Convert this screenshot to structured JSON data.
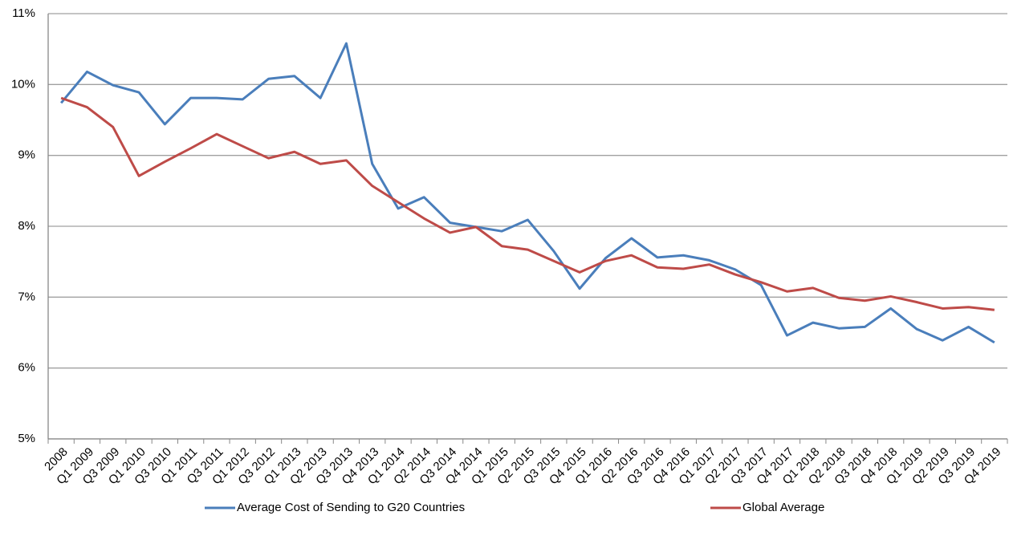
{
  "chart_data": {
    "type": "line",
    "categories": [
      "2008",
      "Q1 2009",
      "Q3 2009",
      "Q1 2010",
      "Q3 2010",
      "Q1 2011",
      "Q3 2011",
      "Q1 2012",
      "Q3 2012",
      "Q1 2013",
      "Q2 2013",
      "Q3 2013",
      "Q4 2013",
      "Q1 2014",
      "Q2 2014",
      "Q3 2014",
      "Q4 2014",
      "Q1 2015",
      "Q2 2015",
      "Q3 2015",
      "Q4 2015",
      "Q1 2016",
      "Q2 2016",
      "Q3 2016",
      "Q4 2016",
      "Q1 2017",
      "Q2 2017",
      "Q3 2017",
      "Q4 2017",
      "Q1 2018",
      "Q2 2018",
      "Q3 2018",
      "Q4 2018",
      "Q1 2019",
      "Q2 2019",
      "Q3 2019",
      "Q4 2019"
    ],
    "series": [
      {
        "name": "Average Cost of Sending to G20 Countries",
        "color": "#4a7ebb",
        "values": [
          9.74,
          10.18,
          9.99,
          9.89,
          9.44,
          9.81,
          9.81,
          9.79,
          10.08,
          10.12,
          9.81,
          10.58,
          8.88,
          8.25,
          8.41,
          8.05,
          7.99,
          7.93,
          8.09,
          7.65,
          7.12,
          7.55,
          7.83,
          7.56,
          7.59,
          7.52,
          7.39,
          7.17,
          6.46,
          6.64,
          6.56,
          6.58,
          6.84,
          6.55,
          6.39,
          6.58,
          6.36
        ]
      },
      {
        "name": "Global Average",
        "color": "#be4b48",
        "values": [
          9.81,
          9.68,
          9.4,
          8.71,
          8.91,
          9.1,
          9.3,
          9.13,
          8.96,
          9.05,
          8.88,
          8.93,
          8.57,
          8.34,
          8.11,
          7.91,
          7.99,
          7.72,
          7.67,
          7.51,
          7.35,
          7.51,
          7.59,
          7.42,
          7.4,
          7.46,
          7.32,
          7.21,
          7.08,
          7.13,
          6.99,
          6.95,
          7.01,
          6.93,
          6.84,
          6.86,
          6.82
        ]
      }
    ],
    "ylim": [
      5,
      11
    ],
    "yticks": [
      {
        "value": 5,
        "label": "5%"
      },
      {
        "value": 6,
        "label": "6%"
      },
      {
        "value": 7,
        "label": "7%"
      },
      {
        "value": 8,
        "label": "8%"
      },
      {
        "value": 9,
        "label": "9%"
      },
      {
        "value": 10,
        "label": "10%"
      },
      {
        "value": 11,
        "label": "11%"
      }
    ],
    "grid": true,
    "legend": "bottom"
  }
}
